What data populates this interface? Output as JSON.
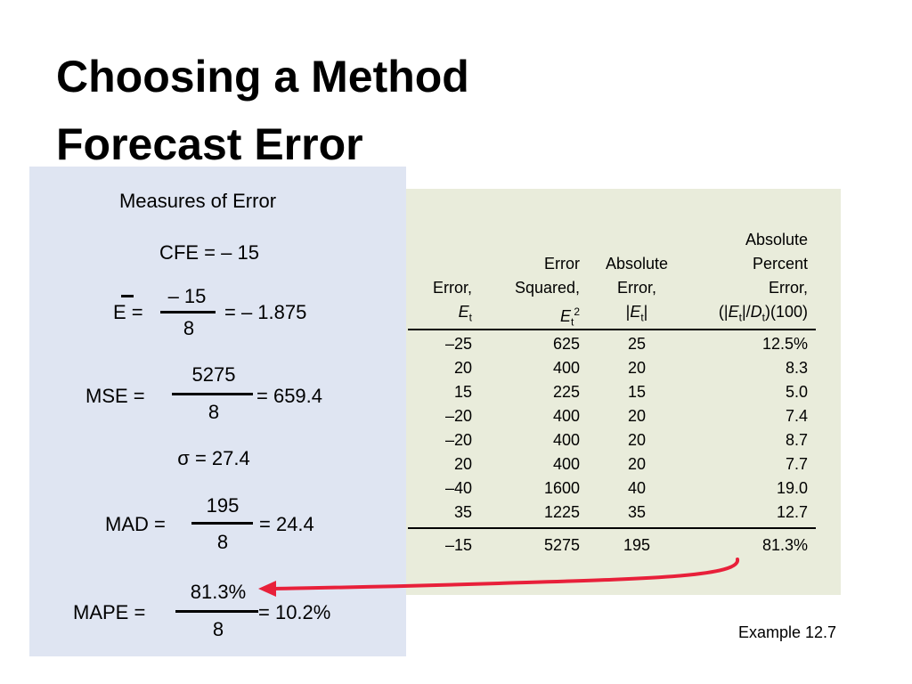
{
  "title": [
    "Choosing a Method",
    "Forecast Error"
  ],
  "panel": {
    "heading": "Measures of Error",
    "cfe": "CFE = – 15",
    "ebar": {
      "lhs": "E =",
      "num": "– 15",
      "den": "8",
      "rhs": "= – 1.875"
    },
    "mse": {
      "lhs": "MSE =",
      "num": "5275",
      "den": "8",
      "rhs": "= 659.4"
    },
    "sigma": "σ = 27.4",
    "mad": {
      "lhs": "MAD =",
      "num": "195",
      "den": "8",
      "rhs": "= 24.4"
    },
    "mape": {
      "lhs": "MAPE =",
      "num": "81.3%",
      "den": "8",
      "rhs": "= 10.2%"
    }
  },
  "table": {
    "headers": [
      [
        [
          {
            "text": "Error,",
            "style": "normal"
          }
        ],
        [
          {
            "text": "E",
            "style": "italic"
          },
          {
            "text": "t",
            "style": "sub"
          }
        ]
      ],
      [
        [
          {
            "text": "Error",
            "style": "normal"
          }
        ],
        [
          {
            "text": "Squared,",
            "style": "normal"
          }
        ],
        [
          {
            "text": "E",
            "style": "italic"
          },
          {
            "text": "t",
            "style": "sub"
          },
          {
            "text": "2",
            "style": "sup"
          }
        ]
      ],
      [
        [
          {
            "text": "Absolute",
            "style": "normal"
          }
        ],
        [
          {
            "text": "Error,",
            "style": "normal"
          }
        ],
        [
          {
            "text": "|",
            "style": "normal"
          },
          {
            "text": "E",
            "style": "italic"
          },
          {
            "text": "t",
            "style": "sub"
          },
          {
            "text": "|",
            "style": "normal"
          }
        ]
      ],
      [
        [
          {
            "text": "Absolute",
            "style": "normal"
          }
        ],
        [
          {
            "text": "Percent",
            "style": "normal"
          }
        ],
        [
          {
            "text": "Error,",
            "style": "normal"
          }
        ],
        [
          {
            "text": "(|",
            "style": "normal"
          },
          {
            "text": "E",
            "style": "italic"
          },
          {
            "text": "t",
            "style": "sub"
          },
          {
            "text": "|/",
            "style": "normal"
          },
          {
            "text": "D",
            "style": "italic"
          },
          {
            "text": "t",
            "style": "sub"
          },
          {
            "text": ")(100)",
            "style": "normal"
          }
        ]
      ]
    ],
    "rows": [
      [
        "–25",
        "625",
        "25",
        "12.5%"
      ],
      [
        "20",
        "400",
        "20",
        "8.3"
      ],
      [
        "15",
        "225",
        "15",
        "5.0"
      ],
      [
        "–20",
        "400",
        "20",
        "7.4"
      ],
      [
        "–20",
        "400",
        "20",
        "8.7"
      ],
      [
        "20",
        "400",
        "20",
        "7.7"
      ],
      [
        "–40",
        "1600",
        "40",
        "19.0"
      ],
      [
        "35",
        "1225",
        "35",
        "12.7"
      ]
    ],
    "total": [
      "–15",
      "5275",
      "195",
      "81.3%"
    ]
  },
  "caption": "Example 12.7"
}
